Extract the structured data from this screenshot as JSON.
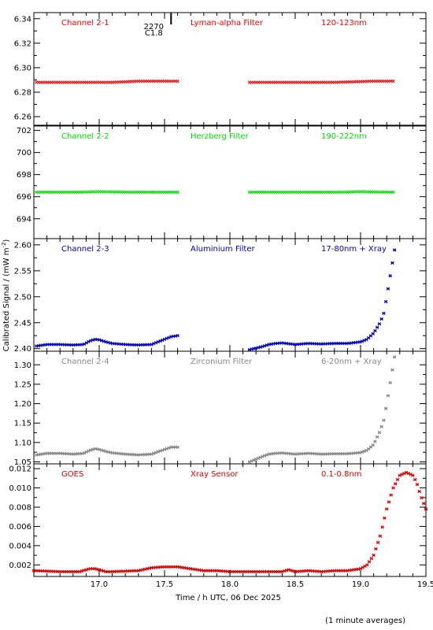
{
  "xlabel": "Time / h UTC, 06 Dec 2025",
  "ylabel": "Calibrated Signal / (mW m",
  "ylabel_sup": "-2",
  "ylabel_close": ")",
  "footnote": "(1 minute averages)",
  "flare_marker": {
    "time": 17.55,
    "label_top": "2270",
    "label_bottom": "C1.8"
  },
  "chart_data": [
    {
      "type": "scatter",
      "channel": "Channel 2-1",
      "filter": "Lyman-alpha Filter",
      "band": "120-123nm",
      "color": "#ff0000",
      "xlim": [
        16.5,
        19.5
      ],
      "ylim": [
        6.253,
        6.345
      ],
      "yticks": [
        6.26,
        6.28,
        6.3,
        6.32,
        6.34
      ],
      "ytick_labels": [
        "6.26",
        "6.28",
        "6.30",
        "6.32",
        "6.34"
      ],
      "marker": "x",
      "series": [
        {
          "segments": [
            {
              "x": [
                16.52,
                16.8,
                17.1,
                17.3,
                17.6
              ],
              "y": [
                6.288,
                6.288,
                6.288,
                6.289,
                6.289
              ]
            },
            {
              "x": [
                18.15,
                18.5,
                18.8,
                19.1,
                19.25
              ],
              "y": [
                6.288,
                6.288,
                6.288,
                6.289,
                6.289
              ]
            }
          ]
        }
      ]
    },
    {
      "type": "scatter",
      "channel": "Channel 2-2",
      "filter": "Herzberg Filter",
      "band": "190-222nm",
      "color": "#00e000",
      "xlim": [
        16.5,
        19.5
      ],
      "ylim": [
        692.2,
        702.4
      ],
      "yticks": [
        694,
        696,
        698,
        700,
        702
      ],
      "ytick_labels": [
        "694",
        "696",
        "698",
        "700",
        "702"
      ],
      "marker": "x",
      "series": [
        {
          "segments": [
            {
              "x": [
                16.52,
                16.8,
                17.0,
                17.3,
                17.6
              ],
              "y": [
                696.4,
                696.4,
                696.45,
                696.4,
                696.4
              ]
            },
            {
              "x": [
                18.15,
                18.5,
                18.8,
                19.0,
                19.25
              ],
              "y": [
                696.4,
                696.4,
                696.4,
                696.45,
                696.4
              ]
            }
          ]
        }
      ]
    },
    {
      "type": "scatter",
      "channel": "Channel 2-3",
      "filter": "Aluminium Filter",
      "band": "17-80nm + Xray",
      "color": "#0000cc",
      "xlim": [
        16.5,
        19.5
      ],
      "ylim": [
        2.395,
        2.612
      ],
      "yticks": [
        2.4,
        2.45,
        2.5,
        2.55,
        2.6
      ],
      "ytick_labels": [
        "2.40",
        "2.45",
        "2.50",
        "2.55",
        "2.60"
      ],
      "marker": "*",
      "series": [
        {
          "segments": [
            {
              "x": [
                16.52,
                16.6,
                16.7,
                16.8,
                16.88,
                16.93,
                16.97,
                17.0,
                17.05,
                17.1,
                17.2,
                17.3,
                17.4,
                17.45,
                17.5,
                17.55,
                17.6
              ],
              "y": [
                2.405,
                2.408,
                2.408,
                2.407,
                2.408,
                2.415,
                2.418,
                2.417,
                2.413,
                2.41,
                2.408,
                2.407,
                2.408,
                2.413,
                2.418,
                2.423,
                2.425
              ]
            },
            {
              "x": [
                18.15,
                18.2,
                18.25,
                18.3,
                18.35,
                18.4,
                18.5,
                18.6,
                18.7,
                18.8,
                18.9,
                19.0,
                19.05,
                19.1,
                19.15,
                19.18,
                19.2,
                19.22,
                19.24,
                19.26
              ],
              "y": [
                2.398,
                2.401,
                2.404,
                2.408,
                2.41,
                2.411,
                2.408,
                2.41,
                2.409,
                2.41,
                2.41,
                2.413,
                2.418,
                2.43,
                2.45,
                2.47,
                2.5,
                2.53,
                2.56,
                2.59
              ]
            }
          ]
        }
      ]
    },
    {
      "type": "scatter",
      "channel": "Channel 2-4",
      "filter": "Zirconium Filter",
      "band": "6-20nm + Xray",
      "color": "#888888",
      "xlim": [
        16.5,
        19.5
      ],
      "ylim": [
        1.045,
        1.335
      ],
      "yticks": [
        1.05,
        1.1,
        1.15,
        1.2,
        1.25,
        1.3
      ],
      "ytick_labels": [
        "1.05",
        "1.10",
        "1.15",
        "1.20",
        "1.25",
        "1.30"
      ],
      "marker": "*",
      "series": [
        {
          "segments": [
            {
              "x": [
                16.52,
                16.6,
                16.7,
                16.8,
                16.88,
                16.93,
                16.97,
                17.0,
                17.05,
                17.1,
                17.2,
                17.3,
                17.4,
                17.45,
                17.5,
                17.55,
                17.6
              ],
              "y": [
                1.068,
                1.072,
                1.072,
                1.07,
                1.072,
                1.08,
                1.084,
                1.082,
                1.077,
                1.073,
                1.07,
                1.068,
                1.07,
                1.076,
                1.082,
                1.088,
                1.088
              ]
            },
            {
              "x": [
                18.15,
                18.2,
                18.25,
                18.3,
                18.35,
                18.4,
                18.5,
                18.6,
                18.7,
                18.8,
                18.9,
                19.0,
                19.05,
                19.1,
                19.15,
                19.18,
                19.2,
                19.22,
                19.24,
                19.26
              ],
              "y": [
                1.05,
                1.057,
                1.064,
                1.07,
                1.072,
                1.073,
                1.07,
                1.072,
                1.07,
                1.071,
                1.071,
                1.074,
                1.08,
                1.095,
                1.13,
                1.16,
                1.2,
                1.24,
                1.28,
                1.32
              ]
            }
          ]
        }
      ]
    },
    {
      "type": "scatter",
      "channel": "GOES",
      "filter": "Xray Sensor",
      "band": "0.1-0.8nm",
      "color": "#e00000",
      "xlim": [
        16.5,
        19.5
      ],
      "ylim": [
        0.0008,
        0.0125
      ],
      "yticks": [
        0.002,
        0.004,
        0.006,
        0.008,
        0.01,
        0.012
      ],
      "ytick_labels": [
        "0.002",
        "0.004",
        "0.006",
        "0.008",
        "0.010",
        "0.012"
      ],
      "xticks": [
        17.0,
        17.5,
        18.0,
        18.5,
        19.0,
        19.5
      ],
      "xtick_labels": [
        "17.0",
        "17.5",
        "18.0",
        "18.5",
        "19.0",
        "19.5"
      ],
      "marker": "*",
      "series": [
        {
          "segments": [
            {
              "x": [
                16.5,
                16.7,
                16.85,
                16.93,
                16.97,
                17.0,
                17.05,
                17.1,
                17.3,
                17.4,
                17.5,
                17.6,
                17.7,
                17.8,
                17.9,
                18.0,
                18.2,
                18.4,
                18.45,
                18.5,
                18.6,
                18.7,
                18.8,
                18.9,
                19.0,
                19.05,
                19.1,
                19.15,
                19.2,
                19.25,
                19.3,
                19.35,
                19.4,
                19.43,
                19.46,
                19.5
              ],
              "y": [
                0.0014,
                0.0013,
                0.0013,
                0.0016,
                0.0016,
                0.0015,
                0.0013,
                0.0013,
                0.0014,
                0.0017,
                0.0018,
                0.0018,
                0.0016,
                0.0014,
                0.0014,
                0.0013,
                0.0013,
                0.0013,
                0.0015,
                0.0013,
                0.0014,
                0.0013,
                0.0014,
                0.0014,
                0.0016,
                0.002,
                0.003,
                0.005,
                0.0078,
                0.01,
                0.0113,
                0.0116,
                0.0113,
                0.0105,
                0.0092,
                0.0078
              ]
            }
          ]
        }
      ]
    }
  ]
}
